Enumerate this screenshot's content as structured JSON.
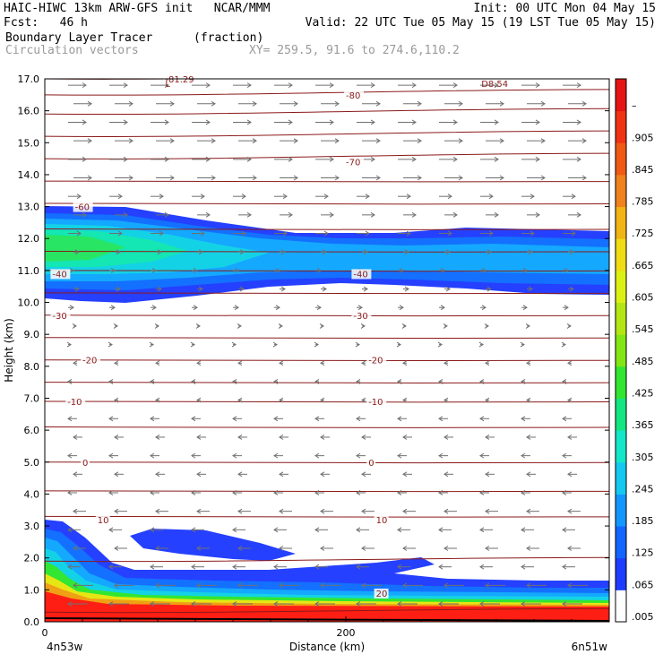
{
  "header": {
    "line1_left": "HAIC-HIWC 13km ARW-GFS init   NCAR/MMM",
    "line1_right": "Init: 00 UTC Mon 04 May 15",
    "line2_left": "Fcst:   46 h",
    "line2_right": "Valid: 22 UTC Tue 05 May 15 (19 LST Tue 05 May 15)",
    "field_name": "Boundary Layer Tracer",
    "field_units": "(fraction)",
    "vector_name": "Circulation vectors",
    "xy_range": "XY= 259.5, 91.6 to 274.6,110.2"
  },
  "chart_data": {
    "type": "heatmap",
    "ylabel": "Height (km)",
    "xlabel": "Distance (km)",
    "ylim": [
      0,
      17
    ],
    "xlim": [
      0,
      375
    ],
    "y_ticks": [
      "0.0",
      "1.0",
      "2.0",
      "3.0",
      "4.0",
      "5.0",
      "6.0",
      "7.0",
      "8.0",
      "9.0",
      "10.0",
      "11.0",
      "12.0",
      "13.0",
      "14.0",
      "15.0",
      "16.0",
      "17.0"
    ],
    "x_ticks": [
      {
        "value": 0,
        "label": "0"
      },
      {
        "value": 200,
        "label": "200"
      }
    ],
    "x_endpoints": {
      "left": "4n53w",
      "right": "6n51w"
    },
    "colorbar_labels": [
      ".005",
      ".065",
      ".125",
      ".185",
      ".245",
      ".305",
      ".365",
      ".425",
      ".485",
      ".545",
      ".605",
      ".665",
      ".725",
      ".785",
      ".845",
      ".905",
      "–"
    ],
    "colorbar_colors": [
      "#ffffff",
      "#1e3cff",
      "#1464ff",
      "#1496ff",
      "#14c8f0",
      "#14e6c8",
      "#14e682",
      "#32e632",
      "#82e614",
      "#b4e614",
      "#dcf014",
      "#f0dc14",
      "#f0b414",
      "#f0821e",
      "#f05a14",
      "#f03214",
      "#e61414"
    ],
    "temperature_contours": [
      {
        "label": "-81.29",
        "x": 80,
        "y": 17.0
      },
      {
        "label": "-80",
        "x": 200,
        "y": 16.5
      },
      {
        "label": "-70",
        "x": 200,
        "y": 14.4
      },
      {
        "label": "-60",
        "x": 20,
        "y": 13.0
      },
      {
        "label": "-40",
        "x": 5,
        "y": 10.9
      },
      {
        "label": "-40",
        "x": 205,
        "y": 10.9
      },
      {
        "label": "-30",
        "x": 5,
        "y": 9.6
      },
      {
        "label": "-30",
        "x": 205,
        "y": 9.6
      },
      {
        "label": "-20",
        "x": 25,
        "y": 8.2
      },
      {
        "label": "-20",
        "x": 215,
        "y": 8.2
      },
      {
        "label": "-10",
        "x": 15,
        "y": 6.9
      },
      {
        "label": "-10",
        "x": 215,
        "y": 6.9
      },
      {
        "label": "0",
        "x": 25,
        "y": 5.0
      },
      {
        "label": "0",
        "x": 215,
        "y": 5.0
      },
      {
        "label": "10",
        "x": 35,
        "y": 3.2
      },
      {
        "label": "10",
        "x": 220,
        "y": 3.2
      },
      {
        "label": "20",
        "x": 220,
        "y": 0.9
      }
    ],
    "corner_labels": [
      {
        "label": "L",
        "x": 80,
        "y": 17.0
      },
      {
        "label": "D8.54",
        "x": 290,
        "y": 17.0
      }
    ],
    "contour_levels_km": [
      0.3,
      1.9,
      3.3,
      4.1,
      5.0,
      6.1,
      6.9,
      7.5,
      8.2,
      8.9,
      9.6,
      10.3,
      11.0,
      11.6,
      12.3,
      13.1,
      13.8,
      14.5,
      15.2,
      15.9,
      16.5,
      17.0
    ]
  }
}
